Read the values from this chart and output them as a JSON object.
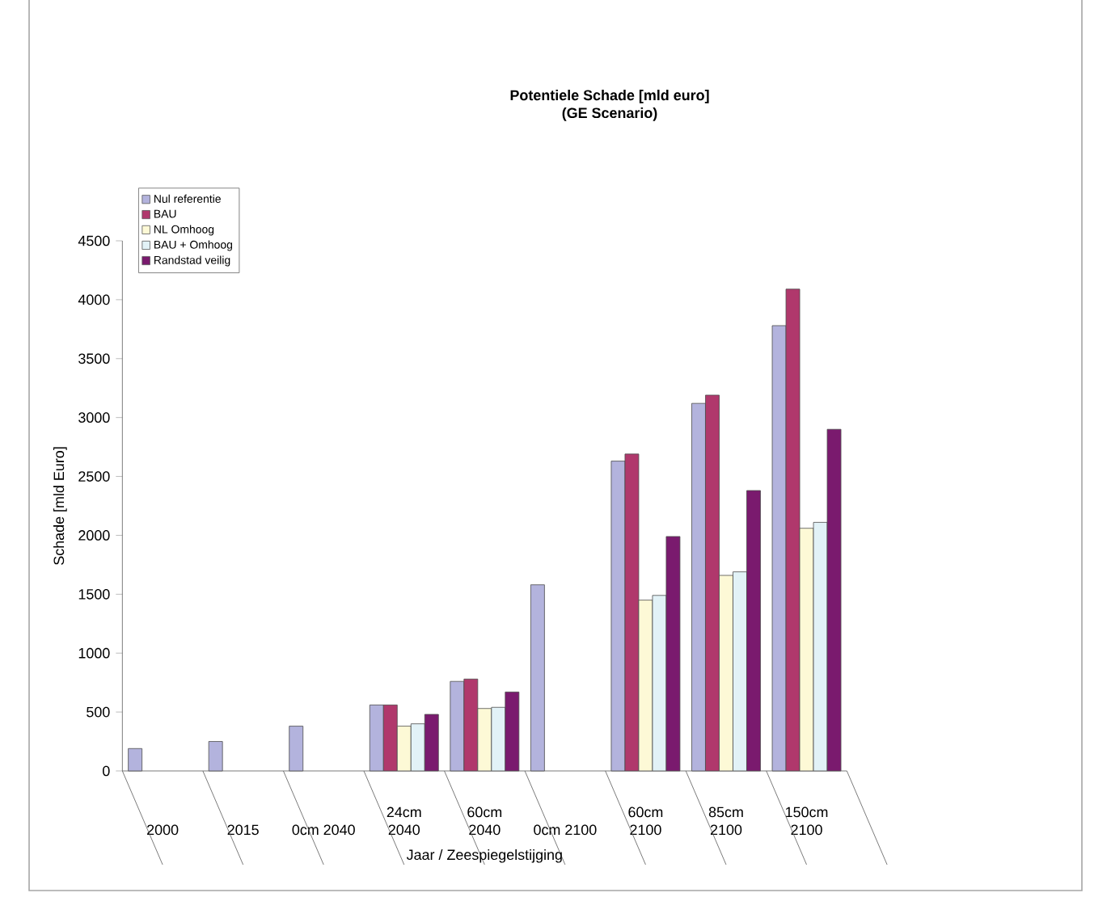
{
  "chart_data": {
    "type": "bar",
    "title": "Potentiele Schade [mld euro]",
    "subtitle": "(GE Scenario)",
    "xlabel": "Jaar / Zeespiegelstijging",
    "ylabel": "Schade [mld Euro]",
    "categories": [
      "2000",
      "2015",
      "0cm 2040",
      "24cm 2040",
      "60cm 2040",
      "0cm 2100",
      "60cm 2100",
      "85cm 2100",
      "150cm 2100"
    ],
    "series": [
      {
        "name": "Nul referentie",
        "color": "#b3b3dd",
        "values": [
          190,
          250,
          380,
          560,
          760,
          1580,
          2630,
          3120,
          3780
        ]
      },
      {
        "name": "BAU",
        "color": "#b0386c",
        "values": [
          null,
          null,
          null,
          560,
          780,
          null,
          2690,
          3190,
          4090
        ]
      },
      {
        "name": "NL Omhoog",
        "color": "#fdf9d6",
        "values": [
          null,
          null,
          null,
          380,
          530,
          null,
          1450,
          1660,
          2060
        ]
      },
      {
        "name": "BAU + Omhoog",
        "color": "#e2f2f7",
        "values": [
          null,
          null,
          null,
          400,
          540,
          null,
          1490,
          1690,
          2110
        ]
      },
      {
        "name": "Randstad veilig",
        "color": "#7a1a6e",
        "values": [
          null,
          null,
          null,
          480,
          670,
          null,
          1990,
          2380,
          2900
        ]
      }
    ],
    "ylim": [
      0,
      4500
    ],
    "yticks": [
      0,
      500,
      1000,
      1500,
      2000,
      2500,
      3000,
      3500,
      4000,
      4500
    ],
    "legend": "top left"
  }
}
